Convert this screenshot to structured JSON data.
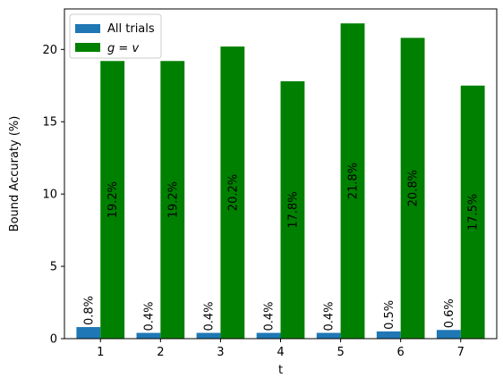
{
  "chart_data": {
    "type": "bar",
    "title": "",
    "xlabel": "t",
    "ylabel": "Bound Accuraty (%)",
    "categories": [
      "1",
      "2",
      "3",
      "4",
      "5",
      "6",
      "7"
    ],
    "ylim": [
      0,
      22.8
    ],
    "yticks": [
      0,
      5,
      10,
      15,
      20
    ],
    "grid": false,
    "legend_position": "top-left",
    "series": [
      {
        "name": "All trials",
        "color": "#1f77b4",
        "values": [
          0.8,
          0.4,
          0.4,
          0.4,
          0.4,
          0.5,
          0.6
        ],
        "labels": [
          "0.8%",
          "0.4%",
          "0.4%",
          "0.4%",
          "0.4%",
          "0.5%",
          "0.6%"
        ]
      },
      {
        "name_parts": [
          "g",
          " = ",
          "v"
        ],
        "color": "#008000",
        "values": [
          19.2,
          19.2,
          20.2,
          17.8,
          21.8,
          20.8,
          17.5
        ],
        "labels": [
          "19.2%",
          "19.2%",
          "20.2%",
          "17.8%",
          "21.8%",
          "20.8%",
          "17.5%"
        ]
      }
    ]
  }
}
